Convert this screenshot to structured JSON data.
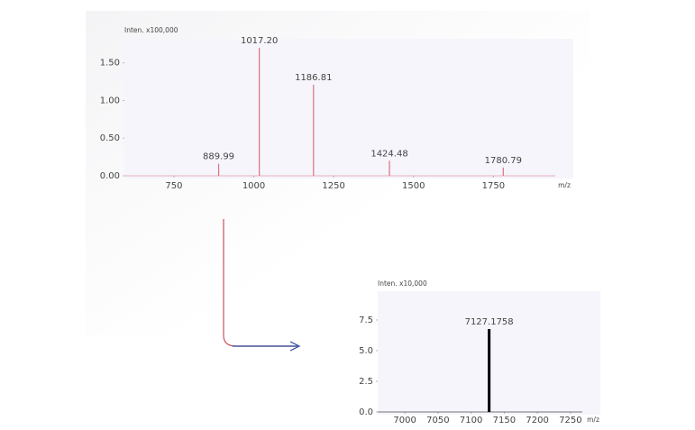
{
  "chart_data": [
    {
      "type": "spectrum",
      "y_label": "Inten. x100,000",
      "x_label": "m/z",
      "x": [
        889.99,
        1017.2,
        1186.81,
        1424.48,
        1780.79
      ],
      "x_labels": [
        "889.99",
        "1017.20",
        "1186.81",
        "1424.48",
        "1780.79"
      ],
      "values": [
        0.16,
        1.7,
        1.21,
        0.2,
        0.11
      ],
      "color": "#d9737d",
      "xlim": [
        595,
        2000
      ],
      "xticks": [
        750,
        1000,
        1250,
        1500,
        1750
      ],
      "ylim": [
        0,
        1.82
      ],
      "yticks": [
        {
          "value": 0,
          "label": "0.00"
        },
        {
          "value": 0.5,
          "label": "0.50"
        },
        {
          "value": 1,
          "label": "1.00"
        },
        {
          "value": 1.5,
          "label": "1.50"
        }
      ]
    },
    {
      "type": "spectrum",
      "y_label": "Inten. x10,000",
      "x_label": "m/z",
      "x": [
        7127.1758
      ],
      "x_labels": [
        "7127.1758"
      ],
      "values": [
        6.76
      ],
      "color": "#000000",
      "xlim": [
        6959,
        7295
      ],
      "xticks": [
        7000,
        7050,
        7100,
        7150,
        7200,
        7250
      ],
      "ylim": [
        0,
        9.85
      ],
      "yticks": [
        {
          "value": 0,
          "label": "0.0"
        },
        {
          "value": 2.5,
          "label": "2.5"
        },
        {
          "value": 5,
          "label": "5.0"
        },
        {
          "value": 7.5,
          "label": "7.5"
        }
      ]
    }
  ]
}
